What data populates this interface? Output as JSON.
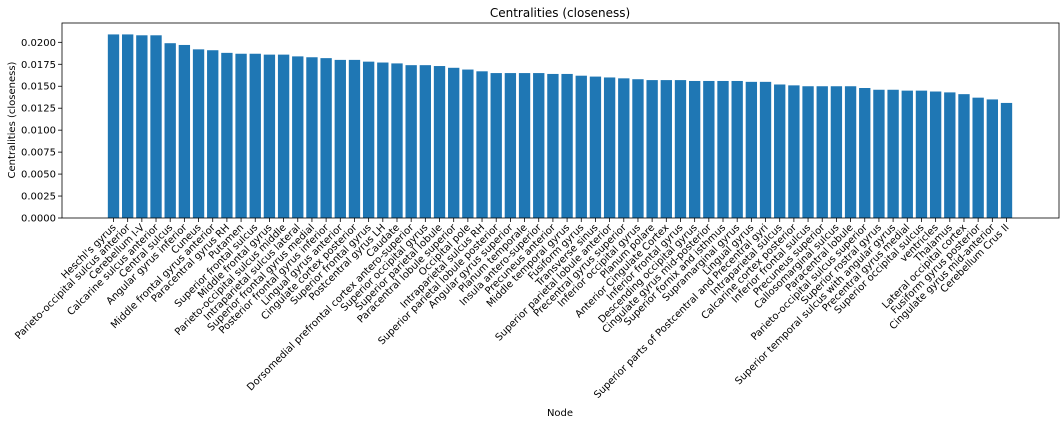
{
  "chart_data": {
    "type": "bar",
    "title": "Centralities (closeness)",
    "xlabel": "Node",
    "ylabel": "Centralities (closeness)",
    "ylim": [
      0,
      0.0222
    ],
    "yticks": [
      "0.0000",
      "0.0025",
      "0.0050",
      "0.0075",
      "0.0100",
      "0.0125",
      "0.0150",
      "0.0175",
      "0.0200"
    ],
    "grid": false,
    "bar_color": "#1f77b4",
    "categories": [
      "Heschl's gyrus",
      "Parieto-occipital sulcus anterior",
      "Cerebellum I-V",
      "Calcarine sulcus anterior",
      "Central sulcus",
      "Angular gyrus inferior",
      "Cuneus",
      "Middle frontal gyrus anterior",
      "Paracentral gyrus RH",
      "Putamen",
      "Superior frontal sulcus",
      "Middle frontal gyrus",
      "Parieto-occipital sulcus middle",
      "Intraparietal sulcus lateral",
      "Superior frontal gyrus medial",
      "Posterior frontal gyrus inferior",
      "Lingual gyrus anterior",
      "Cingulate cortex posterior",
      "Superior frontal gyrus",
      "Postcentral gyrus LH",
      "Caudate",
      "Dorsomedial prefrontal cortex antero-superior",
      "Superior occipital gyrus",
      "Superior parietal lobule",
      "Paracentral lobule superior",
      "Occipital pole",
      "Intraparietal sulcus RH",
      "Superior parietal lobule posterior",
      "Angular gyrus superior",
      "Planum temporale",
      "Insula antero-superior",
      "Precuneus anterior",
      "Middle temporal gyrus",
      "Fusiform gyrus",
      "Transverse sinus",
      "Superior parietal lobule anterior",
      "Precentral gyrus superior",
      "Inferior occipital gyrus",
      "Planum polare",
      "Anterior Cingulate Cortex",
      "Inferior frontal gyrus",
      "Descending occipital gyrus",
      "Cingulate gyrus mid-posterior",
      "Superior fornix and isthmus",
      "Supramarginal gyrus",
      "Lingual gyrus",
      "Superior parts of Postcentral and Precentral gyri",
      "Intraparietal sulcus",
      "Calcarine cortex posterior",
      "Inferior frontal sulcus",
      "Precuneus superior",
      "Callosomarginal sulcus",
      "Paracentral lobule",
      "Parieto-occipital sulcus superior",
      "Superior rostral gyrus",
      "Superior temporal sulcus with angular gyrus",
      "Precentral gyrus medial",
      "Superior occipital sulcus",
      "ventricles",
      "Thalamus",
      "Lateral occipital cortex",
      "Fusiform gyrus posterior",
      "Cingulate gyrus mid-anterior",
      "Cerebellum Crus II"
    ],
    "values": [
      0.0209,
      0.0209,
      0.0208,
      0.0208,
      0.0199,
      0.0197,
      0.0192,
      0.0191,
      0.0188,
      0.0187,
      0.0187,
      0.0186,
      0.0186,
      0.0184,
      0.0183,
      0.0182,
      0.018,
      0.018,
      0.0178,
      0.0177,
      0.0176,
      0.0174,
      0.0174,
      0.0173,
      0.0171,
      0.0169,
      0.0167,
      0.0165,
      0.0165,
      0.0165,
      0.0165,
      0.0164,
      0.0164,
      0.0162,
      0.0161,
      0.016,
      0.0159,
      0.0158,
      0.0157,
      0.0157,
      0.0157,
      0.0156,
      0.0156,
      0.0156,
      0.0156,
      0.0155,
      0.0155,
      0.0152,
      0.0151,
      0.015,
      0.015,
      0.015,
      0.015,
      0.0148,
      0.0146,
      0.0146,
      0.0145,
      0.0145,
      0.0144,
      0.0143,
      0.0141,
      0.0137,
      0.0135,
      0.0131
    ]
  }
}
